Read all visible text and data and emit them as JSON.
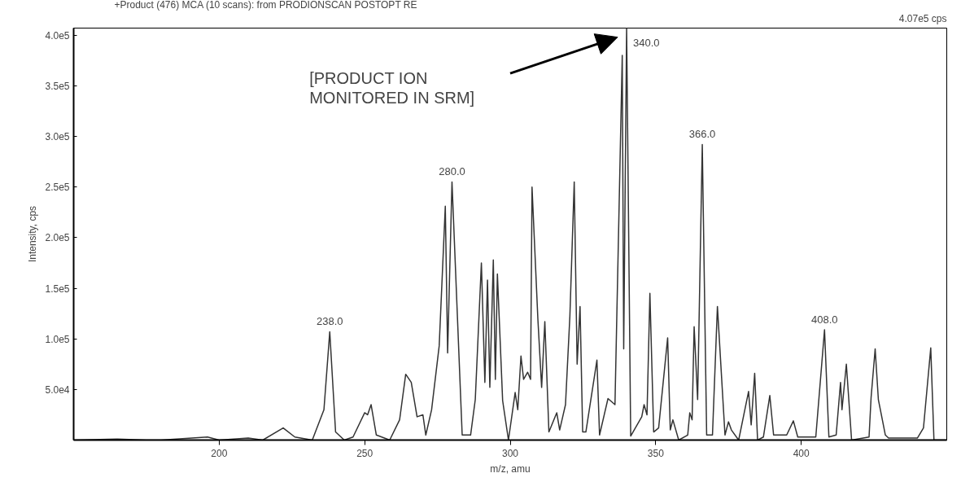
{
  "chart_data": {
    "type": "line",
    "title": "+Product (476) MCA (10 scans): from PRODIONSCAN POSTOPT RE",
    "xlabel": "m/z, amu",
    "ylabel": "Intensity, cps",
    "xlim": [
      150,
      450
    ],
    "ylim": [
      0,
      407000
    ],
    "xticks": [
      200,
      250,
      300,
      350,
      400
    ],
    "yticks": [
      {
        "value": 50000,
        "label": "5.0e4"
      },
      {
        "value": 100000,
        "label": "1.0e5"
      },
      {
        "value": 150000,
        "label": "1.5e5"
      },
      {
        "value": 200000,
        "label": "2.0e5"
      },
      {
        "value": 250000,
        "label": "2.5e5"
      },
      {
        "value": 300000,
        "label": "3.0e5"
      },
      {
        "value": 350000,
        "label": "3.5e5"
      },
      {
        "value": 400000,
        "label": "4.0e5"
      }
    ],
    "grid": false,
    "marker": "none",
    "line_style": "solid",
    "series": [
      {
        "color": "#333333",
        "x": [
          150,
          165,
          175,
          180,
          196,
          200,
          210,
          215,
          222,
          226,
          232,
          236,
          238,
          240,
          243,
          246,
          250,
          251,
          252.2,
          254,
          258.6,
          262,
          264.1,
          266,
          268,
          270,
          271,
          273,
          275.6,
          277.7,
          278.5,
          280,
          283.5,
          286.4,
          288,
          290.1,
          291.3,
          292.2,
          293,
          294.2,
          294.9,
          295.6,
          297.4,
          299.4,
          301.7,
          302.6,
          303.7,
          304.6,
          306,
          307,
          307.5,
          309.5,
          310.8,
          311.9,
          313.3,
          316,
          317,
          319,
          320.5,
          322,
          323,
          324,
          324.9,
          326,
          329.8,
          330.7,
          333.6,
          336,
          338.5,
          339,
          340,
          341.4,
          345.2,
          346,
          347,
          348,
          349.3,
          351,
          354.1,
          355,
          355.9,
          357.9,
          361,
          361.7,
          362.5,
          363.2,
          364.4,
          366,
          367.5,
          369.5,
          371.2,
          373.8,
          375,
          376,
          378.5,
          381.9,
          382.8,
          384,
          385,
          387,
          389.2,
          390.5,
          395,
          397.3,
          398.8,
          405,
          408,
          409.5,
          412,
          413.5,
          414,
          415.5,
          417.3,
          423.3,
          424,
          425.4,
          426.5,
          428.9,
          430,
          439.9,
          442,
          444.5,
          445.6,
          450
        ],
        "values": [
          0,
          1000,
          0,
          0,
          3000,
          0,
          2000,
          0,
          12000,
          3000,
          0,
          30000,
          107000,
          8000,
          0,
          3000,
          27000,
          25000,
          35000,
          5000,
          0,
          20000,
          65000,
          57000,
          23000,
          25000,
          5000,
          30000,
          93000,
          231000,
          86000,
          255000,
          5000,
          5000,
          40000,
          175000,
          57000,
          158000,
          52000,
          178000,
          60000,
          164000,
          39000,
          0,
          47000,
          30000,
          83000,
          60000,
          67000,
          60000,
          250000,
          120000,
          52000,
          117000,
          8000,
          27000,
          10000,
          35000,
          122000,
          255000,
          75000,
          132000,
          8000,
          8000,
          79000,
          5000,
          41000,
          35000,
          380000,
          90000,
          407000,
          4000,
          23000,
          35000,
          25000,
          145000,
          8000,
          12000,
          101000,
          10000,
          20000,
          0,
          5000,
          27000,
          20000,
          112000,
          40000,
          292000,
          5000,
          5000,
          132000,
          5000,
          18000,
          10000,
          0,
          48000,
          15000,
          66000,
          0,
          3000,
          44000,
          5000,
          5000,
          19000,
          3000,
          3000,
          109000,
          3000,
          5000,
          57000,
          30000,
          75000,
          0,
          3000,
          42000,
          90000,
          40000,
          5000,
          2000,
          2000,
          12000,
          91000,
          0,
          0
        ]
      }
    ],
    "annotations": [
      {
        "text": "238.0",
        "x": 238,
        "y": 107000
      },
      {
        "text": "280.0",
        "x": 280,
        "y": 255000
      },
      {
        "text": "340.0",
        "x": 340,
        "y": 407000
      },
      {
        "text": "366.0",
        "x": 366,
        "y": 292000
      },
      {
        "text": "408.0",
        "x": 408,
        "y": 109000
      },
      "[PRODUCT ION\nMONITORED IN SRM]",
      "4.07e5 cps"
    ]
  }
}
